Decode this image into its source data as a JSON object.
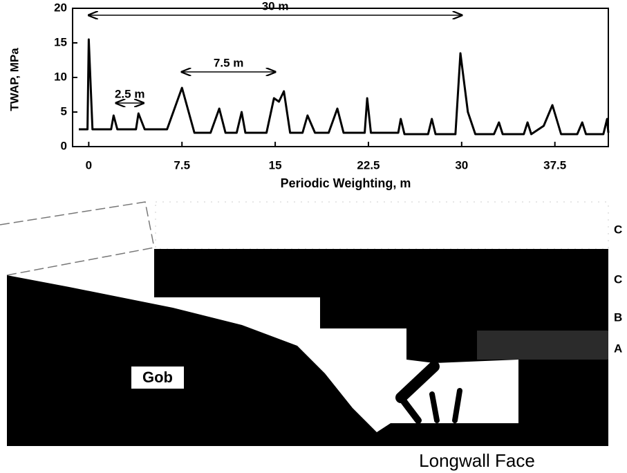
{
  "chart_data": {
    "type": "line",
    "xlabel": "Periodic Weighting, m",
    "ylabel": "TWAP, MPa",
    "x": [
      -0.8,
      -0.1,
      0,
      0.3,
      1.8,
      2,
      2.3,
      3.8,
      4,
      4.5,
      6.3,
      7.5,
      8.5,
      9.8,
      10.5,
      11,
      11.9,
      12.3,
      12.6,
      14.3,
      14.9,
      15.3,
      15.7,
      16.2,
      17.2,
      17.6,
      18.2,
      19.3,
      20,
      20.5,
      22.2,
      22.4,
      22.7,
      24.9,
      25.1,
      25.4,
      27.3,
      27.6,
      27.9,
      29.5,
      29.9,
      30.5,
      31.1,
      32.6,
      33,
      33.3,
      35,
      35.3,
      35.6,
      36.6,
      37.3,
      38,
      39.3,
      39.7,
      40,
      41.4,
      41.7,
      41.8
    ],
    "values": [
      2.5,
      2.5,
      15.5,
      2.5,
      2.5,
      4.5,
      2.5,
      2.5,
      4.8,
      2.5,
      2.5,
      8.5,
      2,
      2,
      5.5,
      2,
      2,
      5,
      2,
      2,
      7,
      6.5,
      8,
      2,
      2,
      4.5,
      2,
      2,
      5.5,
      2,
      2,
      7,
      2,
      2,
      4,
      1.8,
      1.8,
      4,
      1.8,
      1.8,
      13.5,
      5,
      1.8,
      1.8,
      3.5,
      1.8,
      1.8,
      3.5,
      1.8,
      3,
      6,
      1.8,
      1.8,
      3.5,
      1.8,
      1.8,
      4,
      2
    ],
    "color": "#000000",
    "xlim": [
      -1.3,
      41.8
    ],
    "xticks": [
      0,
      7.5,
      15,
      22.5,
      30,
      37.5
    ],
    "ylim": [
      0,
      20
    ],
    "yticks": [
      0,
      5,
      10,
      15,
      20
    ],
    "annotations": [
      {
        "text": "30 m",
        "x": [
          0,
          30
        ],
        "y": 19
      },
      {
        "text": "7.5 m",
        "x": [
          7.5,
          15
        ],
        "y": 10.8
      },
      {
        "text": "2.5 m",
        "x": [
          2.2,
          4.4
        ],
        "y": 6.3
      }
    ]
  },
  "diagram": {
    "gob": "Gob",
    "strata": [
      "C",
      "C",
      "B",
      "A"
    ],
    "caption": "Longwall Face"
  }
}
